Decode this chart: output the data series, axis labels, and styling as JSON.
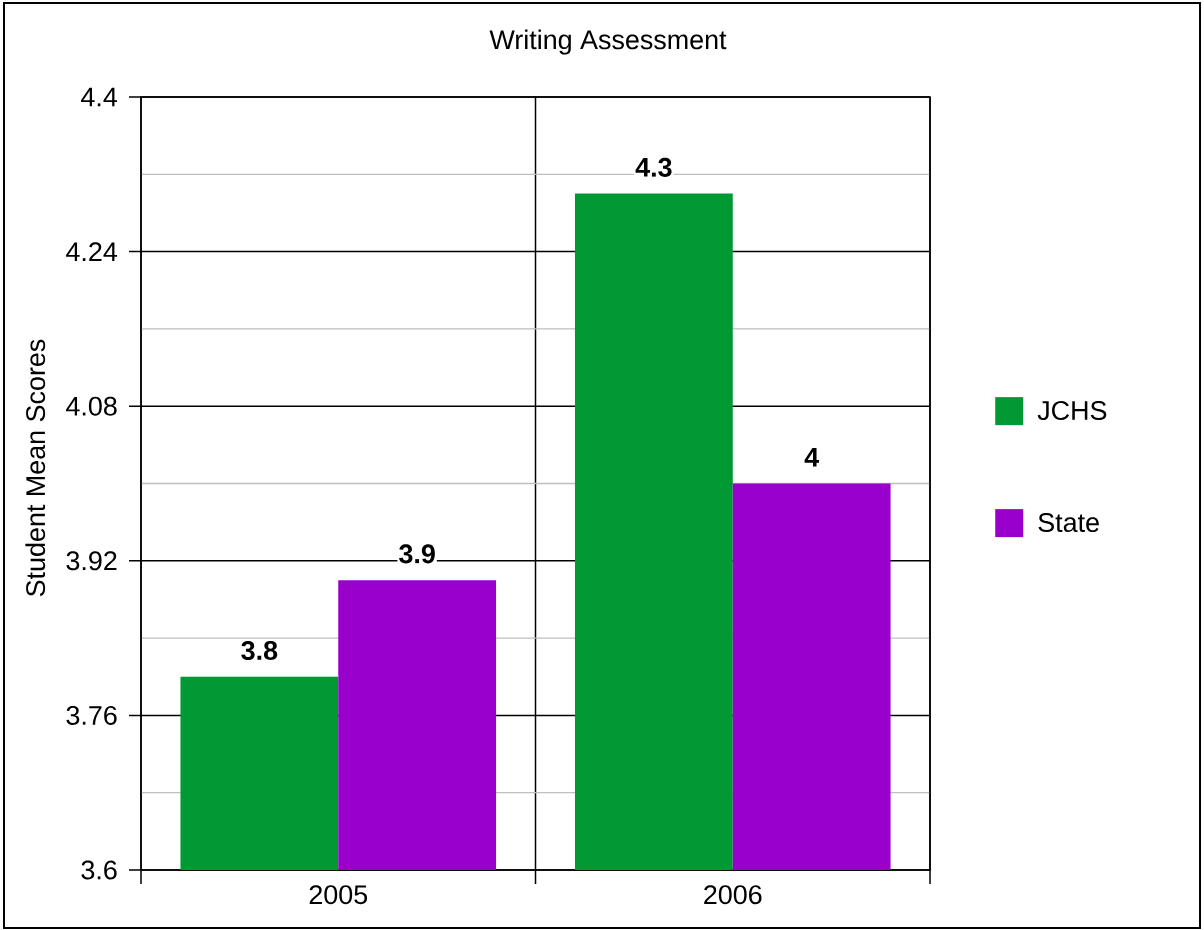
{
  "chart_data": {
    "type": "bar",
    "title": "Writing Assessment",
    "ylabel": "Student Mean Scores",
    "categories": [
      "2005",
      "2006"
    ],
    "series": [
      {
        "name": "JCHS",
        "color": "#009933",
        "values": [
          3.8,
          4.3
        ]
      },
      {
        "name": "State",
        "color": "#9900cc",
        "values": [
          3.9,
          4
        ]
      }
    ],
    "ylim": [
      3.6,
      4.4
    ],
    "yticks": [
      3.6,
      {
        "value": 3.68,
        "label": null
      },
      3.76,
      {
        "value": 3.84,
        "label": null
      },
      3.92,
      {
        "value": 4.0,
        "label": null
      },
      4.08,
      {
        "value": 4.16,
        "label": null
      },
      4.24,
      {
        "value": 4.32,
        "label": null
      },
      4.4
    ],
    "grid": true,
    "legend": "right",
    "data_labels": true
  }
}
